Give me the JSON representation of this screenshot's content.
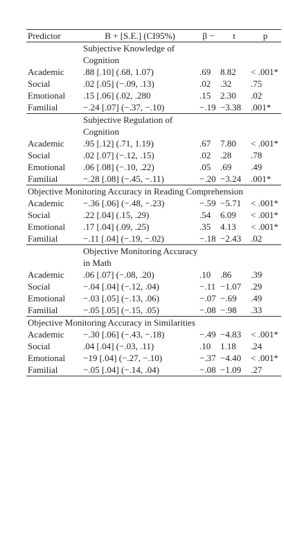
{
  "table": {
    "columns": [
      "Predictor",
      "B + [S.E.] (CI95%)",
      "β −",
      "t",
      "p"
    ],
    "sections": [
      {
        "title": "Subjective Knowledge of Cognition",
        "indent": true,
        "rows": [
          [
            "Academic",
            ".88 [.10] (.68, 1.07)",
            ".69",
            "8.82",
            "< .001*"
          ],
          [
            "Social",
            ".02 [.05] (−.09, .13)",
            ".02",
            ".32",
            ".75"
          ],
          [
            "Emotional",
            ".15 [.06] (.02, .280",
            ".15",
            "2.30",
            ".02"
          ],
          [
            "Familial",
            "−.24 [.07] (−.37, −.10)",
            "−.19",
            "−3.38",
            ".001*"
          ]
        ]
      },
      {
        "title": "Subjective Regulation of Cognition",
        "indent": true,
        "rows": [
          [
            "Academic",
            ".95 [.12] (.71, 1.19)",
            ".67",
            "7.80",
            "< .001*"
          ],
          [
            "Social",
            ".02 [.07] (−.12, .15)",
            ".02",
            ".28",
            ".78"
          ],
          [
            "Emotional",
            ".06 [.08] (−.10, .22)",
            ".05",
            ".69",
            ".49"
          ],
          [
            "Familial",
            "−.28 [.08] (−.45, −.11)",
            "−.20",
            "−3.24",
            ".001*"
          ]
        ]
      },
      {
        "title": "Objective Monitoring Accuracy in Reading Comprehension",
        "indent": false,
        "rows": [
          [
            "Academic",
            "−.36 [.06] (−.48, −.23)",
            "−.59",
            "−5.71",
            "< .001*"
          ],
          [
            "Social",
            ".22 [.04] (.15, .29)",
            ".54",
            "6.09",
            "< .001*"
          ],
          [
            "Emotional",
            ".17 [.04] (.09, .25)",
            ".35",
            "4.13",
            "< .001*"
          ],
          [
            "Familial",
            "−.11 [.04] (−.19, −.02)",
            "−.18",
            "−2.43",
            ".02"
          ]
        ]
      },
      {
        "title": "Objective Monitoring Accuracy in Math",
        "indent": true,
        "rows": [
          [
            "Academic",
            ".06 [.07] (−.08, .20)",
            ".10",
            ".86",
            ".39"
          ],
          [
            "Social",
            "−.04 [.04] (−.12, .04)",
            "−.11",
            "−1.07",
            ".29"
          ],
          [
            "Emotional",
            "−.03 [.05] (−.13, .06)",
            "−.07",
            "−.69",
            ".49"
          ],
          [
            "Familial",
            "−.05 [.05] (−.15, .05)",
            "−.08",
            "−.98",
            ".33"
          ]
        ]
      },
      {
        "title": "Objective Monitoring Accuracy in Similarities",
        "indent": false,
        "rows": [
          [
            "Academic",
            "−.30 [.06] (−.43, −.18)",
            "−.49",
            "−4.83",
            "< .001*"
          ],
          [
            "Social",
            ".04 [.04] (−.03, .11)",
            ".10",
            "1.18",
            ".24"
          ],
          [
            "Emotional",
            "−19 [.04] (−.27, −.10)",
            "−.37",
            "−4.40",
            "< .001*"
          ],
          [
            "Familial",
            "−.05 [.04] (−.14, .04)",
            "−.08",
            "−1.09",
            ".27"
          ]
        ]
      }
    ]
  }
}
